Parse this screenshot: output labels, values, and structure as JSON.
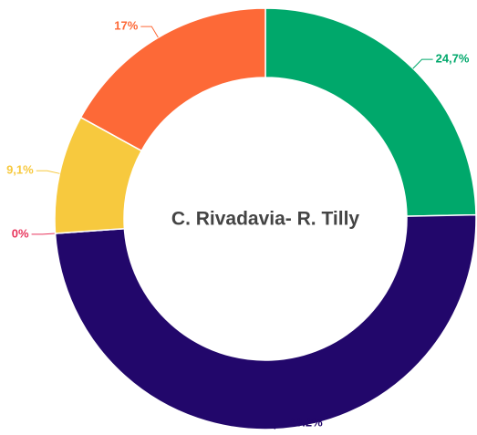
{
  "chart_data": {
    "type": "donut",
    "title": "C. Rivadavia- R. Tilly",
    "values": [
      24.7,
      49.2,
      0,
      9.1,
      17
    ],
    "value_labels": [
      "24,7%",
      "49.2%",
      "0%",
      "9,1%",
      "17%"
    ],
    "colors": [
      "#00a86b",
      "#22076b",
      "#e8365d",
      "#f7c93e",
      "#fd6937"
    ]
  }
}
